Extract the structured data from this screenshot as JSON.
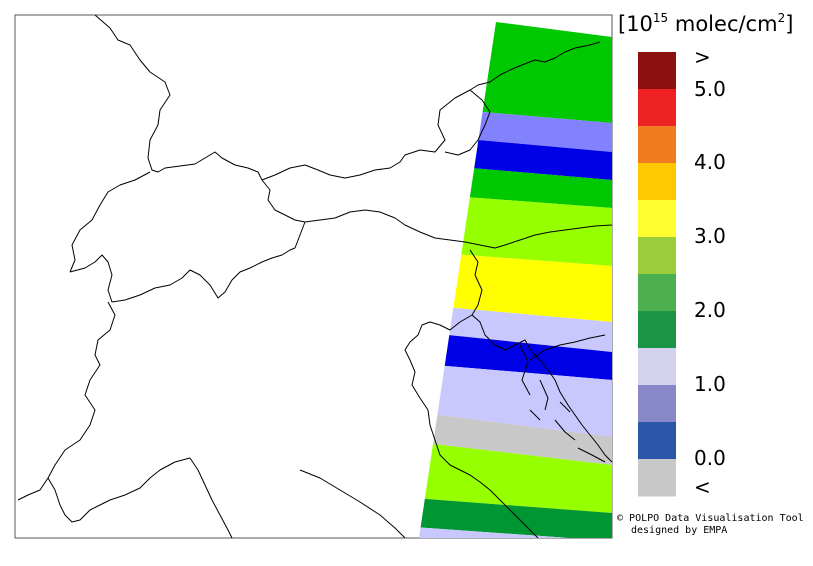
{
  "map": {
    "bands": [
      {
        "color": "#00c800"
      },
      {
        "color": "#8282ff"
      },
      {
        "color": "#0000e6"
      },
      {
        "color": "#00c800"
      },
      {
        "color": "#96ff00"
      },
      {
        "color": "#ffff00"
      },
      {
        "color": "#c8c8ff"
      },
      {
        "color": "#0000e6"
      },
      {
        "color": "#c8c8ff"
      },
      {
        "color": "#c8c8c8"
      },
      {
        "color": "#96ff00"
      },
      {
        "color": "#009632"
      },
      {
        "color": "#c8c8ff"
      }
    ]
  },
  "legend": {
    "unit_base": "[10",
    "unit_exp": "15",
    "unit_rest": " molec/cm",
    "unit_sq": "2",
    "unit_close": "]",
    "colors": [
      "#8b1010",
      "#ee2222",
      "#f07c20",
      "#ffc800",
      "#ffff30",
      "#9acc3c",
      "#4caf50",
      "#1a9646",
      "#d2d2ee",
      "#8888c8",
      "#2c57a8",
      "#c8c8c8"
    ],
    "labels": [
      ">",
      "5.0",
      "4.0",
      "3.0",
      "2.0",
      "1.0",
      "0.0",
      "<"
    ]
  },
  "credit": {
    "symbol": "©",
    "line1": " POLPO Data Visualisation Tool",
    "line2": "designed by EMPA"
  }
}
